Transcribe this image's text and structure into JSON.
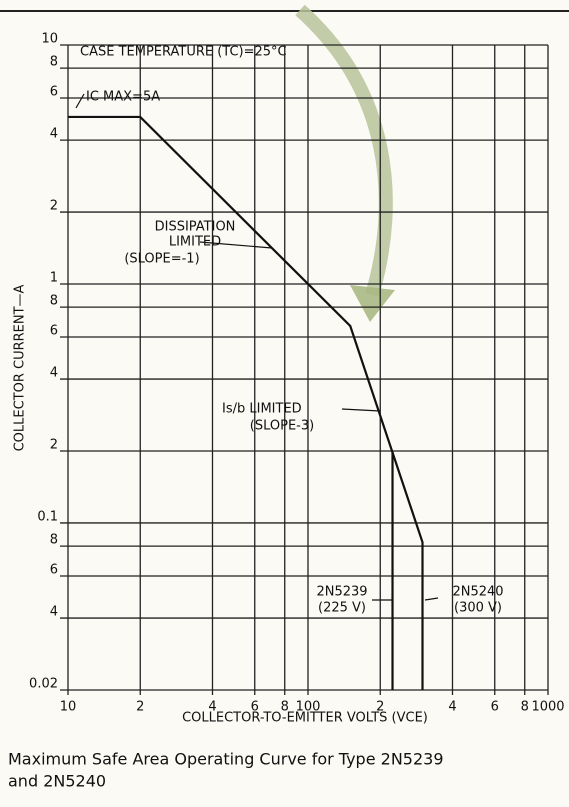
{
  "chart_data": {
    "type": "line",
    "title": "CASE TEMPERATURE (TC)=25°C",
    "x_label": "COLLECTOR-TO-EMITTER VOLTS (VCE)",
    "y_label": "COLLECTOR CURRENT—A",
    "log_x": true,
    "log_y": true,
    "grid": true,
    "xlim": [
      10,
      1000
    ],
    "ylim": [
      0.02,
      10
    ],
    "xticks": [
      10,
      {
        "value": 20,
        "label": "2"
      },
      {
        "value": 40,
        "label": "4"
      },
      {
        "value": 60,
        "label": "6"
      },
      {
        "value": 80,
        "label": "8"
      },
      100,
      {
        "value": 200,
        "label": "2"
      },
      {
        "value": 400,
        "label": "4"
      },
      {
        "value": 600,
        "label": "6"
      },
      {
        "value": 800,
        "label": "8"
      },
      1000
    ],
    "yticks": [
      0.02,
      {
        "value": 0.04,
        "label": "4"
      },
      {
        "value": 0.06,
        "label": "6"
      },
      {
        "value": 0.08,
        "label": "8"
      },
      0.1,
      {
        "value": 0.2,
        "label": "2"
      },
      {
        "value": 0.4,
        "label": "4"
      },
      {
        "value": 0.6,
        "label": "6"
      },
      {
        "value": 0.8,
        "label": "8"
      },
      1,
      {
        "value": 2,
        "label": "2"
      },
      {
        "value": 4,
        "label": "4"
      },
      {
        "value": 6,
        "label": "6"
      },
      {
        "value": 8,
        "label": "8"
      },
      10
    ],
    "series": [
      {
        "color": "#111111",
        "x": [
          10,
          20,
          150,
          300,
          300
        ],
        "values": [
          5,
          5,
          0.667,
          0.083,
          0.02
        ]
      },
      {
        "color": "#111111",
        "x": [
          225,
          225
        ],
        "values": [
          0.198,
          0.02
        ]
      }
    ],
    "annotations": [
      "IC MAX=5A",
      "DISSIPATION",
      "LIMITED",
      "(SLOPE=-1)",
      "Is/b LIMITED",
      "(SLOPE-3)",
      "2N5239",
      "(225 V)",
      "2N5240",
      "(300 V)"
    ],
    "caption": [
      "Maximum Safe Area Operating Curve for Type 2N5239",
      "and 2N5240"
    ]
  }
}
